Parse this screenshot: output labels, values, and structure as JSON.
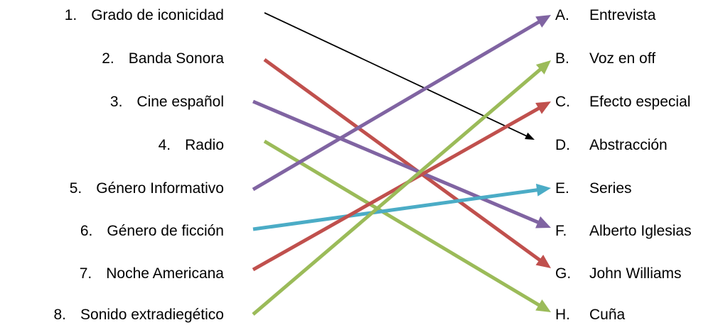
{
  "left_items": [
    {
      "num": "1.",
      "label": "Grado de iconicidad"
    },
    {
      "num": "2.",
      "label": "Banda Sonora"
    },
    {
      "num": "3.",
      "label": "Cine español"
    },
    {
      "num": "4.",
      "label": "Radio"
    },
    {
      "num": "5.",
      "label": "Género Informativo"
    },
    {
      "num": "6.",
      "label": "Género de ficción"
    },
    {
      "num": "7.",
      "label": "Noche Americana"
    },
    {
      "num": "8.",
      "label": "Sonido extradiegético"
    }
  ],
  "right_items": [
    {
      "letter": "A.",
      "label": "Entrevista"
    },
    {
      "letter": "B.",
      "label": "Voz en off"
    },
    {
      "letter": "C.",
      "label": "Efecto especial"
    },
    {
      "letter": "D.",
      "label": "Abstracción"
    },
    {
      "letter": "E.",
      "label": "Series"
    },
    {
      "letter": "F.",
      "label": "Alberto Iglesias"
    },
    {
      "letter": "G.",
      "label": "John Williams"
    },
    {
      "letter": "H.",
      "label": "Cuña"
    }
  ],
  "connections": [
    {
      "from": 1,
      "to": 4,
      "color": "#000000"
    },
    {
      "from": 2,
      "to": 7,
      "color": "#c0504d"
    },
    {
      "from": 3,
      "to": 6,
      "color": "#8064a2"
    },
    {
      "from": 4,
      "to": 8,
      "color": "#9bbb59"
    },
    {
      "from": 5,
      "to": 1,
      "color": "#8064a2"
    },
    {
      "from": 6,
      "to": 5,
      "color": "#4bacc6"
    },
    {
      "from": 7,
      "to": 3,
      "color": "#c0504d"
    },
    {
      "from": 8,
      "to": 2,
      "color": "#9bbb59"
    }
  ]
}
